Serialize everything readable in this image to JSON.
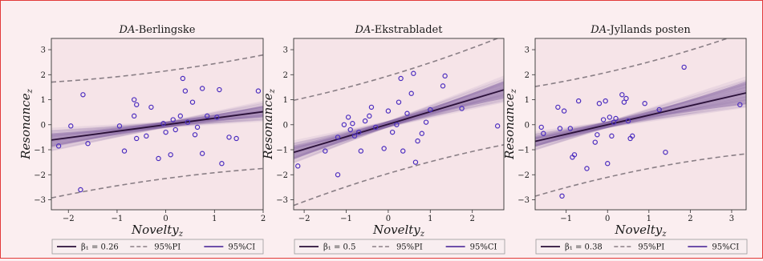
{
  "colors": {
    "background": "#fbeef0",
    "plot_bg": "#f6e4e8",
    "fit": "#2a1038",
    "band": "#7b5a9e",
    "pi": "#8a7f86",
    "point": "#4b2dbf",
    "border": "#e23a3a"
  },
  "chart_data": [
    {
      "type": "scatter",
      "title_prefix": "DA",
      "title_rest": "-Berlingske",
      "xlabel": "Novelty",
      "xlabel_sub": "z",
      "ylabel": "Resonance",
      "ylabel_sub": "z",
      "xlim": [
        -2.35,
        2.0
      ],
      "ylim": [
        -3.4,
        3.45
      ],
      "xticks": [
        -2,
        -1,
        0,
        1,
        2
      ],
      "yticks": [
        -3,
        -2,
        -1,
        0,
        1,
        2,
        3
      ],
      "fit": {
        "intercept": 0.0,
        "slope": 0.26
      },
      "ci_halfwidth": 0.12,
      "pi": {
        "lower_intercept": -2.15,
        "lower_slope": 0.26,
        "upper_intercept": 2.15,
        "upper_slope": 0.26,
        "curvature": 0.03
      },
      "points": [
        [
          -2.2,
          -0.85
        ],
        [
          -1.95,
          -0.05
        ],
        [
          -1.7,
          1.2
        ],
        [
          -1.75,
          -2.6
        ],
        [
          -1.6,
          -0.75
        ],
        [
          -0.85,
          -1.05
        ],
        [
          -0.65,
          1.0
        ],
        [
          -0.6,
          0.8
        ],
        [
          -0.65,
          0.35
        ],
        [
          -0.6,
          -0.55
        ],
        [
          -0.4,
          -0.45
        ],
        [
          -0.3,
          0.7
        ],
        [
          -0.15,
          -1.35
        ],
        [
          -0.05,
          0.05
        ],
        [
          0.0,
          -0.3
        ],
        [
          0.1,
          -1.2
        ],
        [
          0.15,
          0.2
        ],
        [
          0.2,
          -0.2
        ],
        [
          0.3,
          0.35
        ],
        [
          0.35,
          1.85
        ],
        [
          0.4,
          1.35
        ],
        [
          0.55,
          0.9
        ],
        [
          0.6,
          -0.4
        ],
        [
          0.65,
          -0.1
        ],
        [
          0.75,
          -1.15
        ],
        [
          0.75,
          1.45
        ],
        [
          0.85,
          0.35
        ],
        [
          1.05,
          0.3
        ],
        [
          1.1,
          1.4
        ],
        [
          1.15,
          -1.55
        ],
        [
          1.3,
          -0.5
        ],
        [
          1.45,
          -0.55
        ],
        [
          1.9,
          1.35
        ],
        [
          0.45,
          0.1
        ],
        [
          -0.95,
          -0.05
        ]
      ],
      "legend": [
        {
          "kind": "solid",
          "label": "β₁ = 0.26"
        },
        {
          "kind": "dashed",
          "label": "95%PI"
        },
        {
          "kind": "band",
          "label": "95%CI"
        }
      ]
    },
    {
      "type": "scatter",
      "title_prefix": "DA",
      "title_rest": "-Ekstrabladet",
      "xlabel": "Novelty",
      "xlabel_sub": "z",
      "ylabel": "Resonance",
      "ylabel_sub": "z",
      "xlim": [
        -2.25,
        2.75
      ],
      "ylim": [
        -3.4,
        3.45
      ],
      "xticks": [
        -2,
        -1,
        0,
        1,
        2
      ],
      "yticks": [
        -3,
        -2,
        -1,
        0,
        1,
        2,
        3
      ],
      "fit": {
        "intercept": 0.02,
        "slope": 0.5
      },
      "ci_halfwidth": 0.13,
      "pi": {
        "lower_intercept": -1.95,
        "lower_slope": 0.5,
        "upper_intercept": 1.95,
        "upper_slope": 0.5,
        "curvature": 0.03
      },
      "points": [
        [
          -2.15,
          -1.65
        ],
        [
          -1.5,
          -1.05
        ],
        [
          -1.2,
          -2.0
        ],
        [
          -1.2,
          -0.5
        ],
        [
          -1.05,
          0.0
        ],
        [
          -0.9,
          -0.2
        ],
        [
          -0.85,
          0.05
        ],
        [
          -0.8,
          -0.45
        ],
        [
          -0.7,
          -0.3
        ],
        [
          -0.65,
          -1.05
        ],
        [
          -0.55,
          0.15
        ],
        [
          -0.45,
          0.35
        ],
        [
          -0.4,
          0.7
        ],
        [
          -0.3,
          -0.1
        ],
        [
          -0.1,
          -0.95
        ],
        [
          0.0,
          0.55
        ],
        [
          0.1,
          -0.3
        ],
        [
          0.2,
          0.0
        ],
        [
          0.3,
          1.85
        ],
        [
          0.35,
          -1.05
        ],
        [
          0.45,
          0.45
        ],
        [
          0.55,
          1.25
        ],
        [
          0.6,
          2.05
        ],
        [
          0.65,
          -1.5
        ],
        [
          0.7,
          -0.65
        ],
        [
          0.8,
          -0.35
        ],
        [
          0.9,
          0.1
        ],
        [
          1.0,
          0.6
        ],
        [
          1.35,
          1.95
        ],
        [
          1.3,
          1.55
        ],
        [
          1.75,
          0.65
        ],
        [
          2.6,
          -0.05
        ],
        [
          -0.95,
          0.3
        ],
        [
          0.25,
          0.9
        ]
      ],
      "legend": [
        {
          "kind": "solid",
          "label": "β₁ = 0.5"
        },
        {
          "kind": "dashed",
          "label": "95%PI"
        },
        {
          "kind": "band",
          "label": "95%CI"
        }
      ]
    },
    {
      "type": "scatter",
      "title_prefix": "DA",
      "title_rest": "-Jyllands posten",
      "xlabel": "Novelty",
      "xlabel_sub": "z",
      "ylabel": "Resonance",
      "ylabel_sub": "z",
      "xlim": [
        -1.75,
        3.35
      ],
      "ylim": [
        -3.4,
        3.45
      ],
      "xticks": [
        -1,
        0,
        1,
        2,
        3
      ],
      "yticks": [
        -3,
        -2,
        -1,
        0,
        1,
        2,
        3
      ],
      "fit": {
        "intercept": 0.0,
        "slope": 0.38
      },
      "ci_halfwidth": 0.13,
      "pi": {
        "lower_intercept": -2.1,
        "lower_slope": 0.38,
        "upper_intercept": 2.1,
        "upper_slope": 0.38,
        "curvature": 0.03
      },
      "points": [
        [
          -1.6,
          -0.1
        ],
        [
          -1.55,
          -0.35
        ],
        [
          -1.2,
          0.7
        ],
        [
          -1.15,
          -0.15
        ],
        [
          -1.05,
          0.55
        ],
        [
          -1.1,
          -2.85
        ],
        [
          -0.9,
          -0.15
        ],
        [
          -0.85,
          -1.3
        ],
        [
          -0.8,
          -1.2
        ],
        [
          -0.7,
          0.95
        ],
        [
          -0.5,
          -1.75
        ],
        [
          -0.3,
          -0.7
        ],
        [
          -0.2,
          0.85
        ],
        [
          -0.1,
          0.2
        ],
        [
          -0.05,
          0.95
        ],
        [
          0.0,
          -1.55
        ],
        [
          0.05,
          0.3
        ],
        [
          0.1,
          -0.45
        ],
        [
          0.15,
          0.1
        ],
        [
          0.2,
          0.25
        ],
        [
          0.35,
          1.2
        ],
        [
          0.4,
          0.9
        ],
        [
          0.45,
          1.05
        ],
        [
          0.55,
          -0.55
        ],
        [
          0.6,
          -0.45
        ],
        [
          0.9,
          0.85
        ],
        [
          1.25,
          0.6
        ],
        [
          1.4,
          -1.1
        ],
        [
          1.85,
          2.3
        ],
        [
          3.2,
          0.8
        ],
        [
          0.5,
          0.15
        ],
        [
          -0.25,
          -0.4
        ]
      ],
      "legend": [
        {
          "kind": "solid",
          "label": "β₁ = 0.38"
        },
        {
          "kind": "dashed",
          "label": "95%PI"
        },
        {
          "kind": "band",
          "label": "95%CI"
        }
      ]
    }
  ]
}
